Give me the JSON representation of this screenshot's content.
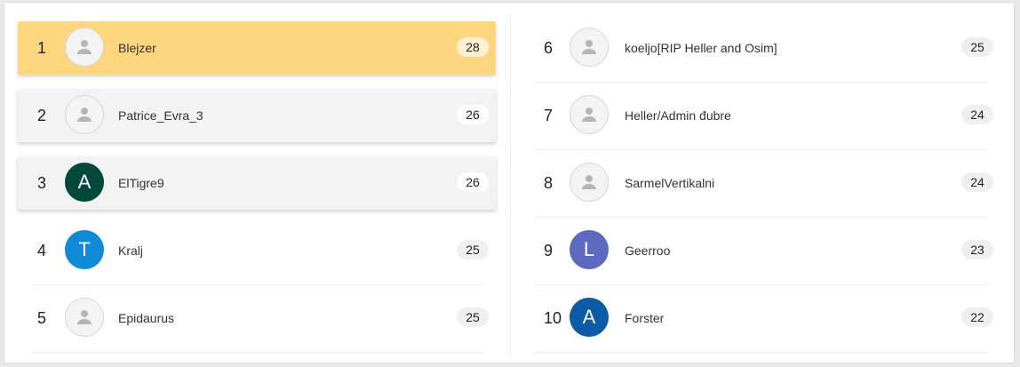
{
  "leaderboard": {
    "entries": [
      {
        "rank": "1",
        "name": "Blejzer",
        "score": "28",
        "avatar_letter": "",
        "avatar_color": ""
      },
      {
        "rank": "2",
        "name": "Patrice_Evra_3",
        "score": "26",
        "avatar_letter": "",
        "avatar_color": ""
      },
      {
        "rank": "3",
        "name": "ElTigre9",
        "score": "26",
        "avatar_letter": "A",
        "avatar_color": "#02483d"
      },
      {
        "rank": "4",
        "name": "Kralj",
        "score": "25",
        "avatar_letter": "T",
        "avatar_color": "#0f8ad9"
      },
      {
        "rank": "5",
        "name": "Epidaurus",
        "score": "25",
        "avatar_letter": "",
        "avatar_color": ""
      },
      {
        "rank": "6",
        "name": "koeljo[RIP Heller and Osim]",
        "score": "25",
        "avatar_letter": "",
        "avatar_color": ""
      },
      {
        "rank": "7",
        "name": "Heller/Admin đubre",
        "score": "24",
        "avatar_letter": "",
        "avatar_color": ""
      },
      {
        "rank": "8",
        "name": "SarmelVertikalni",
        "score": "24",
        "avatar_letter": "",
        "avatar_color": ""
      },
      {
        "rank": "9",
        "name": "Geerroo",
        "score": "23",
        "avatar_letter": "L",
        "avatar_color": "#5c6bc0"
      },
      {
        "rank": "10",
        "name": "Forster",
        "score": "22",
        "avatar_letter": "A",
        "avatar_color": "#0b5aa8"
      }
    ]
  },
  "colors": {
    "gold": "#fdd67e",
    "silver_bronze": "#f3f3f4",
    "default_avatar_icon": "#b5b5b5"
  },
  "icons": {
    "default_avatar": "user-silhouette-icon"
  }
}
